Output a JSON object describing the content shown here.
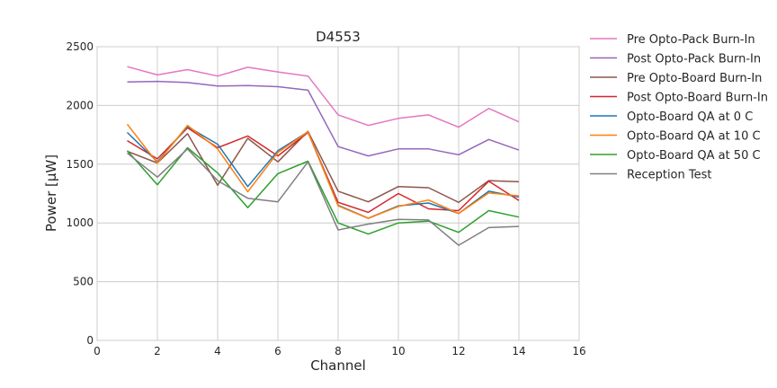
{
  "chart_data": {
    "type": "line",
    "title": "D4553",
    "xlabel": "Channel",
    "ylabel": "Power [μW]",
    "xlim": [
      0,
      16
    ],
    "ylim": [
      0,
      2500
    ],
    "xticks": [
      "0",
      "2",
      "4",
      "6",
      "8",
      "10",
      "12",
      "14",
      "16"
    ],
    "yticks": [
      "0",
      "500",
      "1000",
      "1500",
      "2000",
      "2500"
    ],
    "grid": true,
    "legend_position": "outside-right",
    "x": [
      1,
      2,
      3,
      4,
      5,
      6,
      7,
      8,
      9,
      10,
      11,
      12,
      13,
      14
    ],
    "series": [
      {
        "name": "Pre Opto-Pack Burn-In",
        "color": "#e377c2",
        "values": [
          2330,
          2260,
          2305,
          2250,
          2325,
          2285,
          2250,
          1920,
          1830,
          1890,
          1920,
          1815,
          1975,
          1860
        ]
      },
      {
        "name": "Post Opto-Pack Burn-In",
        "color": "#9467bd",
        "values": [
          2200,
          2205,
          2195,
          2165,
          2170,
          2160,
          2130,
          1650,
          1570,
          1630,
          1630,
          1580,
          1710,
          1620
        ]
      },
      {
        "name": "Pre Opto-Board Burn-In",
        "color": "#8c564b",
        "values": [
          1610,
          1510,
          1760,
          1320,
          1720,
          1520,
          1780,
          1270,
          1180,
          1310,
          1300,
          1175,
          1360,
          1350
        ]
      },
      {
        "name": "Post Opto-Board Burn-In",
        "color": "#d62728",
        "values": [
          1700,
          1545,
          1810,
          1640,
          1740,
          1570,
          1770,
          1175,
          1090,
          1250,
          1120,
          1105,
          1355,
          1190
        ]
      },
      {
        "name": "Opto-Board QA at 0 C",
        "color": "#1f77b4",
        "values": [
          1770,
          1520,
          1820,
          1670,
          1310,
          1615,
          1775,
          1150,
          1040,
          1145,
          1170,
          1080,
          1270,
          1220
        ]
      },
      {
        "name": "Opto-Board QA at 10 C",
        "color": "#ff7f0e",
        "values": [
          1840,
          1510,
          1830,
          1630,
          1265,
          1600,
          1775,
          1145,
          1040,
          1140,
          1195,
          1080,
          1255,
          1230
        ]
      },
      {
        "name": "Opto-Board QA at 50 C",
        "color": "#2ca02c",
        "values": [
          1615,
          1325,
          1640,
          1425,
          1130,
          1420,
          1525,
          1000,
          905,
          1000,
          1015,
          920,
          1105,
          1050
        ]
      },
      {
        "name": "Reception Test",
        "color": "#7f7f7f",
        "values": [
          1595,
          1390,
          1630,
          1360,
          1210,
          1180,
          1520,
          940,
          990,
          1030,
          1025,
          810,
          960,
          970
        ]
      }
    ]
  }
}
